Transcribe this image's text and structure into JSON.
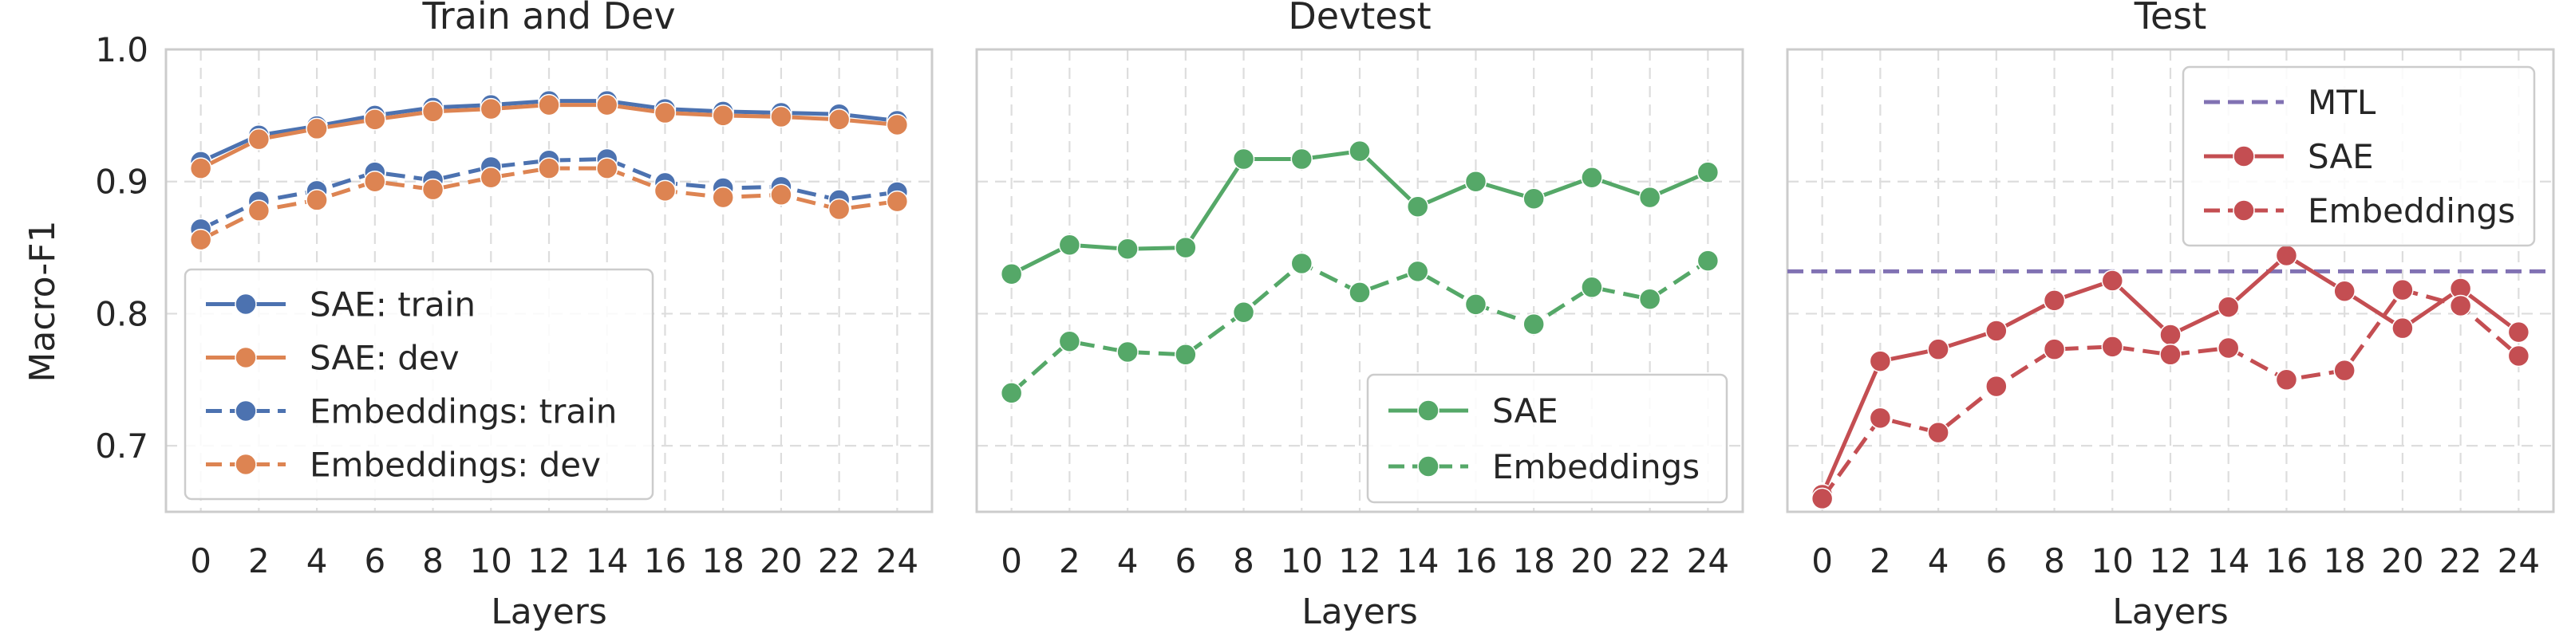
{
  "figure": {
    "ylabel": "Macro-F1",
    "colors": {
      "blue": "#4c72b0",
      "orange": "#dd8452",
      "green": "#55a868",
      "red": "#c44e52",
      "purple": "#8172b3",
      "grid": "#dddddd",
      "frame": "#cccccc"
    }
  },
  "chart_data": [
    {
      "type": "line",
      "title": "Train and Dev",
      "xlabel": "Layers",
      "ylabel": "Macro-F1",
      "x": [
        0,
        2,
        4,
        6,
        8,
        10,
        12,
        14,
        16,
        18,
        20,
        22,
        24
      ],
      "ylim": [
        0.65,
        1.0
      ],
      "yticks": [
        0.7,
        0.8,
        0.9,
        1.0
      ],
      "ytick_labels": [
        "0.7",
        "0.8",
        "0.9",
        "1.0"
      ],
      "grid": true,
      "legend_position": "lower-left",
      "series": [
        {
          "name": "SAE: train",
          "color": "blue",
          "style": "solid",
          "values": [
            0.915,
            0.935,
            0.942,
            0.95,
            0.956,
            0.958,
            0.961,
            0.961,
            0.955,
            0.953,
            0.952,
            0.951,
            0.946
          ]
        },
        {
          "name": "SAE: dev",
          "color": "orange",
          "style": "solid",
          "values": [
            0.91,
            0.932,
            0.94,
            0.947,
            0.953,
            0.955,
            0.958,
            0.958,
            0.952,
            0.95,
            0.949,
            0.947,
            0.943
          ]
        },
        {
          "name": "Embeddings: train",
          "color": "blue",
          "style": "dashed",
          "values": [
            0.864,
            0.885,
            0.893,
            0.907,
            0.901,
            0.911,
            0.916,
            0.917,
            0.899,
            0.895,
            0.896,
            0.886,
            0.892
          ]
        },
        {
          "name": "Embeddings: dev",
          "color": "orange",
          "style": "dashed",
          "values": [
            0.856,
            0.878,
            0.886,
            0.9,
            0.894,
            0.903,
            0.91,
            0.91,
            0.893,
            0.888,
            0.89,
            0.879,
            0.885
          ]
        }
      ]
    },
    {
      "type": "line",
      "title": "Devtest",
      "xlabel": "Layers",
      "x": [
        0,
        2,
        4,
        6,
        8,
        10,
        12,
        14,
        16,
        18,
        20,
        22,
        24
      ],
      "ylim": [
        0.65,
        1.0
      ],
      "grid": true,
      "legend_position": "lower-right",
      "series": [
        {
          "name": "SAE",
          "color": "green",
          "style": "solid",
          "values": [
            0.83,
            0.852,
            0.849,
            0.85,
            0.917,
            0.917,
            0.923,
            0.881,
            0.9,
            0.887,
            0.903,
            0.888,
            0.907
          ]
        },
        {
          "name": "Embeddings",
          "color": "green",
          "style": "dashed",
          "values": [
            0.74,
            0.779,
            0.771,
            0.769,
            0.801,
            0.838,
            0.816,
            0.832,
            0.807,
            0.792,
            0.82,
            0.811,
            0.84
          ]
        }
      ]
    },
    {
      "type": "line",
      "title": "Test",
      "xlabel": "Layers",
      "x": [
        0,
        2,
        4,
        6,
        8,
        10,
        12,
        14,
        16,
        18,
        20,
        22,
        24
      ],
      "ylim": [
        0.65,
        1.0
      ],
      "grid": true,
      "legend_position": "top-right",
      "series": [
        {
          "name": "MTL",
          "color": "purple",
          "style": "dashed",
          "markers": false,
          "constant": 0.832
        },
        {
          "name": "SAE",
          "color": "red",
          "style": "solid",
          "values": [
            0.663,
            0.764,
            0.773,
            0.787,
            0.81,
            0.825,
            0.784,
            0.805,
            0.844,
            0.817,
            0.789,
            0.819,
            0.786
          ]
        },
        {
          "name": "Embeddings",
          "color": "red",
          "style": "dashed",
          "values": [
            0.66,
            0.721,
            0.71,
            0.745,
            0.773,
            0.775,
            0.769,
            0.774,
            0.75,
            0.757,
            0.818,
            0.806,
            0.768
          ]
        }
      ]
    }
  ]
}
